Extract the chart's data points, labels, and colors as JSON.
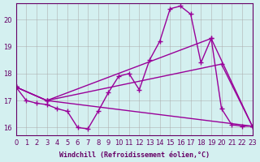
{
  "xlabel": "Windchill (Refroidissement éolien,°C)",
  "ylabel": "",
  "bg_color": "#d4f0f0",
  "line_color": "#990099",
  "grid_color": "#aaaaaa",
  "xlim": [
    0,
    23
  ],
  "ylim": [
    15.7,
    20.6
  ],
  "xticks": [
    0,
    1,
    2,
    3,
    4,
    5,
    6,
    7,
    8,
    9,
    10,
    11,
    12,
    13,
    14,
    15,
    16,
    17,
    18,
    19,
    20,
    21,
    22,
    23
  ],
  "yticks": [
    16,
    17,
    18,
    19,
    20
  ],
  "line1_x": [
    0,
    1,
    2,
    3,
    4,
    5,
    6,
    7,
    8,
    9,
    10,
    11,
    12,
    13,
    14,
    15,
    16,
    17,
    18,
    19,
    20,
    21,
    22,
    23
  ],
  "line1_y": [
    17.5,
    17.0,
    16.9,
    16.85,
    16.7,
    16.6,
    16.0,
    15.95,
    16.6,
    17.3,
    17.9,
    18.0,
    17.4,
    18.5,
    19.2,
    20.4,
    20.5,
    20.2,
    18.4,
    19.3,
    16.7,
    16.1,
    16.05,
    16.05
  ],
  "line2_x": [
    0,
    3,
    23
  ],
  "line2_y": [
    17.5,
    17.0,
    16.05
  ],
  "line3_x": [
    0,
    3,
    19,
    23
  ],
  "line3_y": [
    17.5,
    17.0,
    19.3,
    16.05
  ],
  "line4_x": [
    0,
    3,
    20,
    23
  ],
  "line4_y": [
    17.5,
    17.0,
    18.35,
    16.05
  ]
}
